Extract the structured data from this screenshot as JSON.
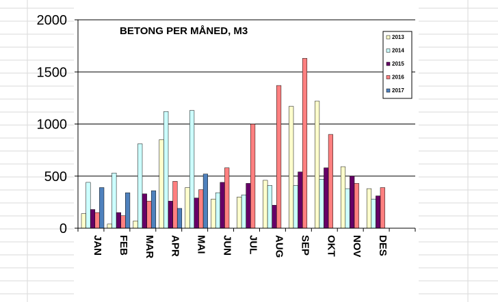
{
  "colors": {
    "sheet_grid": "#dadada",
    "axis": "#000000",
    "gridline": "#000000",
    "bar_outline": "#000000"
  },
  "chart_data": {
    "type": "bar",
    "title": "BETONG PER MÅNED, M3",
    "xlabel": "",
    "ylabel": "",
    "ylim": [
      0,
      2000
    ],
    "yticks": [
      0,
      500,
      1000,
      1500,
      2000
    ],
    "grid": true,
    "legend_position": "top-right",
    "categories": [
      "JAN",
      "FEB",
      "MAR",
      "APR",
      "MAI",
      "JUN",
      "JUL",
      "AUG",
      "SEP",
      "OKT",
      "NOV",
      "DES"
    ],
    "series": [
      {
        "name": "2013",
        "color": "#ffffcc",
        "values": [
          140,
          40,
          70,
          850,
          390,
          280,
          300,
          460,
          1170,
          1220,
          590,
          380
        ]
      },
      {
        "name": "2014",
        "color": "#ccffff",
        "values": [
          440,
          530,
          810,
          1120,
          1130,
          340,
          320,
          410,
          410,
          470,
          380,
          280
        ]
      },
      {
        "name": "2015",
        "color": "#660066",
        "values": [
          180,
          150,
          330,
          260,
          290,
          440,
          430,
          220,
          540,
          580,
          500,
          310
        ]
      },
      {
        "name": "2016",
        "color": "#ff8080",
        "values": [
          150,
          120,
          260,
          450,
          370,
          580,
          1000,
          1370,
          1630,
          900,
          430,
          390
        ]
      },
      {
        "name": "2017",
        "color": "#4f81bd",
        "values": [
          390,
          340,
          360,
          190,
          520,
          null,
          null,
          null,
          null,
          null,
          null,
          null
        ]
      }
    ]
  }
}
